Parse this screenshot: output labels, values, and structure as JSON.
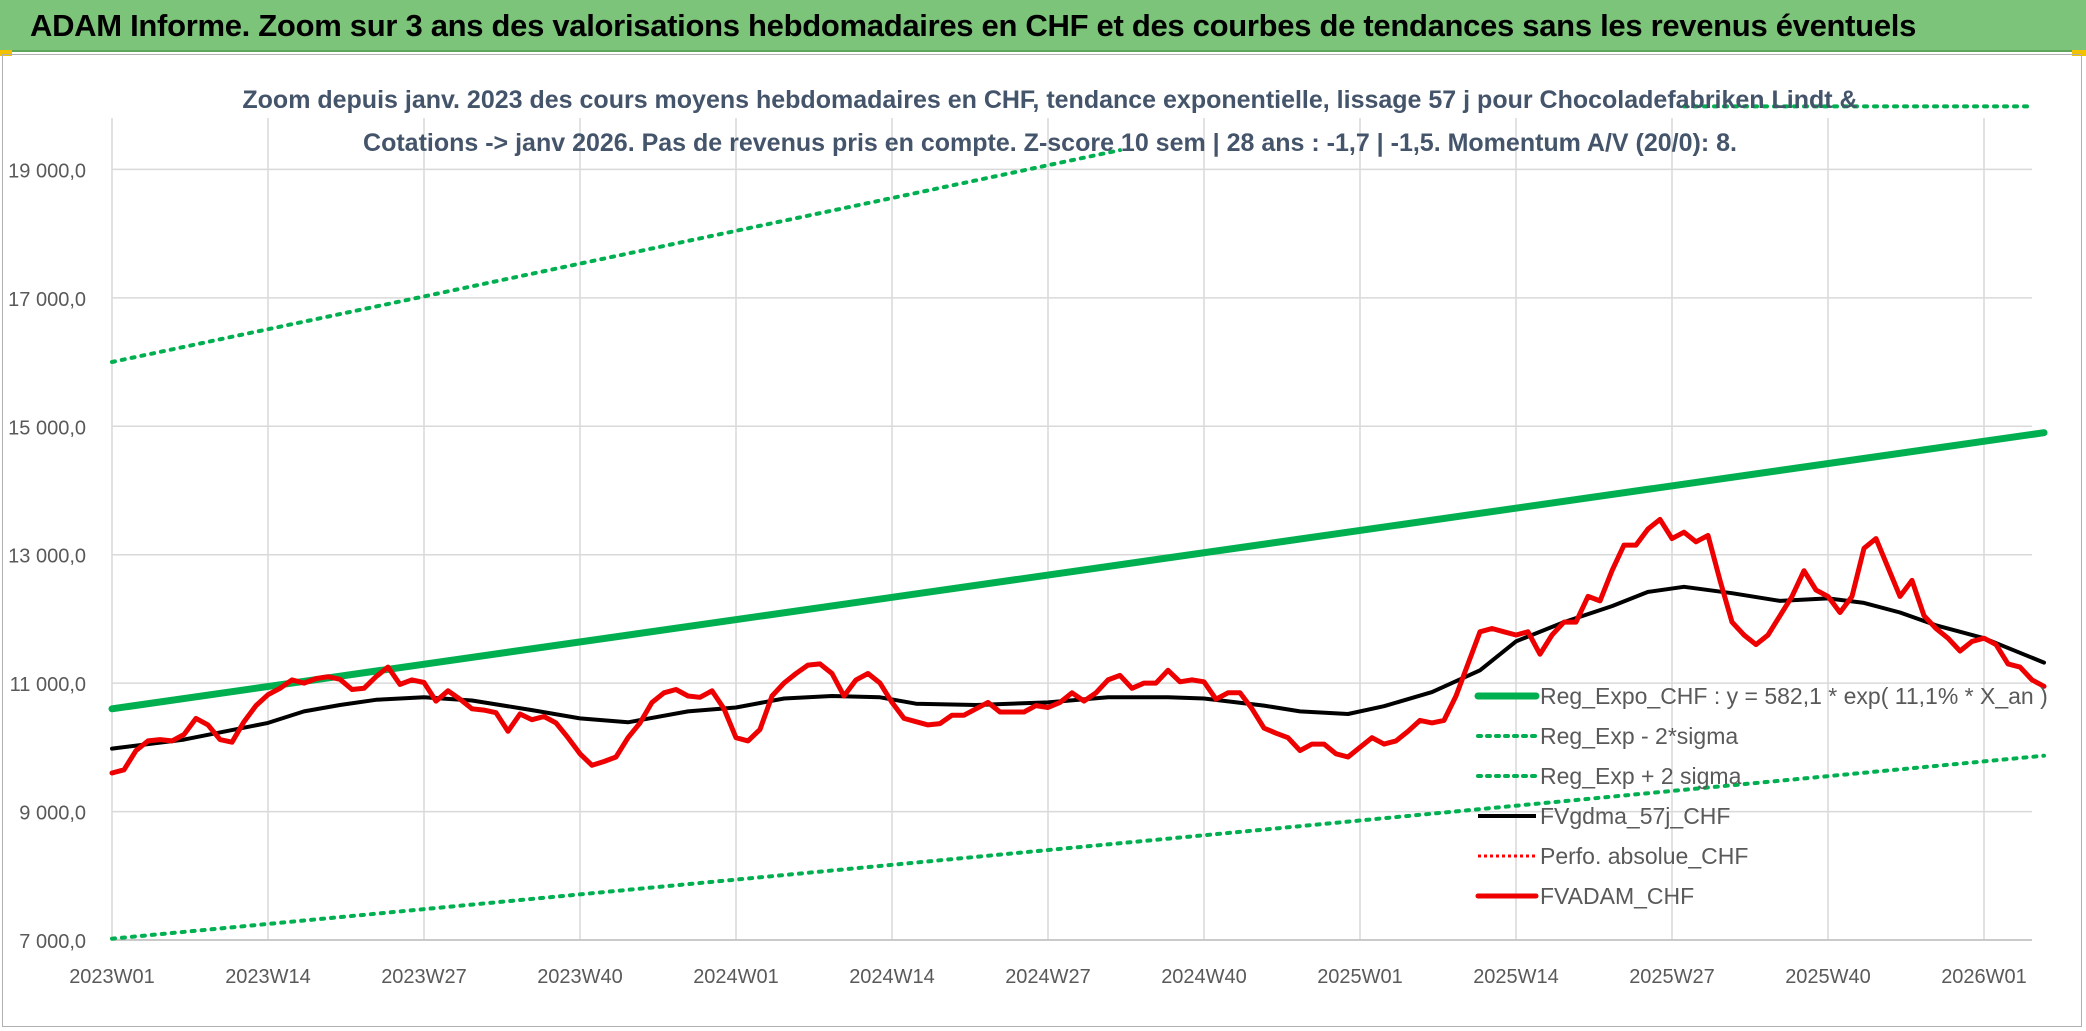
{
  "header": {
    "title": "ADAM Informe. Zoom sur 3 ans des valorisations hebdomadaires en CHF et des courbes de tendances sans les revenus éventuels"
  },
  "chart_data": {
    "type": "line",
    "title_line1": "Zoom depuis janv. 2023 des cours moyens hebdomadaires en CHF, tendance exponentielle, lissage 57 j pour Chocoladefabriken Lindt &",
    "title_line2": "Cotations -> janv 2026. Pas de revenus pris en compte. Z-score 10 sem | 28 ans : -1,7 | -1,5. Momentum A/V (20/0): 8.",
    "ylim": [
      7000,
      19800
    ],
    "yticks": [
      7000,
      9000,
      11000,
      13000,
      15000,
      17000,
      19000
    ],
    "ytick_labels": [
      "7 000,0",
      "9 000,0",
      "11 000,0",
      "13 000,0",
      "15 000,0",
      "17 000,0",
      "19 000,0"
    ],
    "x_tick_labels": [
      "2023W01",
      "2023W14",
      "2023W27",
      "2023W40",
      "2024W01",
      "2024W14",
      "2024W27",
      "2024W40",
      "2025W01",
      "2025W14",
      "2025W27",
      "2025W40",
      "2026W01"
    ],
    "x_tick_index": [
      0,
      13,
      26,
      39,
      52,
      65,
      78,
      91,
      104,
      117,
      130,
      143,
      156
    ],
    "x_count": 161,
    "grid": true,
    "legend_position": "right",
    "legend": [
      {
        "key": "reg",
        "label": "Reg_Expo_CHF : y = 582,1 * exp( 11,1% *  X_an )"
      },
      {
        "key": "lower",
        "label": "Reg_Exp - 2*sigma"
      },
      {
        "key": "upper",
        "label": "Reg_Exp + 2 sigma"
      },
      {
        "key": "sma",
        "label": "FVgdma_57j_CHF"
      },
      {
        "key": "perfo",
        "label": "Perfo. absolue_CHF"
      },
      {
        "key": "price",
        "label": "FVADAM_CHF"
      }
    ],
    "colors": {
      "reg": "#00b050",
      "lower": "#00b050",
      "upper": "#00b050",
      "sma": "#000000",
      "perfo": "#ff0000",
      "price": "#ee0000",
      "grid": "#d9d9d9",
      "axis_text": "#595959"
    },
    "series": [
      {
        "key": "reg",
        "name": "Reg_Expo_CHF : y = 582,1 * exp( 11,1% *  X_an )",
        "style": "solid-thick",
        "points": [
          [
            0,
            10600
          ],
          [
            161,
            14900
          ]
        ]
      },
      {
        "key": "lower",
        "name": "Reg_Exp - 2*sigma",
        "style": "dotted",
        "points": [
          [
            0,
            7020
          ],
          [
            161,
            9870
          ]
        ]
      },
      {
        "key": "upper",
        "name": "Reg_Exp + 2 sigma",
        "style": "dotted",
        "points": [
          [
            0,
            16000
          ],
          [
            84,
            19300
          ]
        ],
        "points_extra": [
          [
            131,
            19980
          ],
          [
            160,
            19980
          ]
        ]
      },
      {
        "key": "sma",
        "name": "FVgdma_57j_CHF",
        "style": "solid",
        "points": [
          [
            0,
            9980
          ],
          [
            6,
            10120
          ],
          [
            13,
            10380
          ],
          [
            16,
            10560
          ],
          [
            19,
            10660
          ],
          [
            22,
            10740
          ],
          [
            26,
            10780
          ],
          [
            30,
            10730
          ],
          [
            35,
            10580
          ],
          [
            39,
            10450
          ],
          [
            43,
            10390
          ],
          [
            48,
            10560
          ],
          [
            52,
            10620
          ],
          [
            56,
            10760
          ],
          [
            60,
            10800
          ],
          [
            64,
            10780
          ],
          [
            67,
            10680
          ],
          [
            72,
            10660
          ],
          [
            78,
            10700
          ],
          [
            83,
            10780
          ],
          [
            88,
            10780
          ],
          [
            91,
            10760
          ],
          [
            96,
            10650
          ],
          [
            99,
            10560
          ],
          [
            103,
            10520
          ],
          [
            106,
            10640
          ],
          [
            110,
            10860
          ],
          [
            114,
            11200
          ],
          [
            117,
            11650
          ],
          [
            121,
            11950
          ],
          [
            125,
            12200
          ],
          [
            128,
            12420
          ],
          [
            131,
            12500
          ],
          [
            135,
            12400
          ],
          [
            139,
            12280
          ],
          [
            143,
            12320
          ],
          [
            146,
            12250
          ],
          [
            149,
            12100
          ],
          [
            152,
            11900
          ],
          [
            156,
            11700
          ],
          [
            161,
            11320
          ]
        ]
      },
      {
        "key": "price",
        "name": "FVADAM_CHF",
        "style": "solid-thick",
        "points": [
          [
            0,
            9600
          ],
          [
            1,
            9650
          ],
          [
            2,
            9950
          ],
          [
            3,
            10100
          ],
          [
            4,
            10120
          ],
          [
            5,
            10100
          ],
          [
            6,
            10200
          ],
          [
            7,
            10450
          ],
          [
            8,
            10350
          ],
          [
            9,
            10120
          ],
          [
            10,
            10080
          ],
          [
            11,
            10400
          ],
          [
            12,
            10650
          ],
          [
            13,
            10820
          ],
          [
            14,
            10920
          ],
          [
            15,
            11050
          ],
          [
            16,
            11000
          ],
          [
            17,
            11070
          ],
          [
            18,
            11100
          ],
          [
            19,
            11060
          ],
          [
            20,
            10900
          ],
          [
            21,
            10920
          ],
          [
            22,
            11100
          ],
          [
            23,
            11250
          ],
          [
            24,
            10980
          ],
          [
            25,
            11050
          ],
          [
            26,
            11010
          ],
          [
            27,
            10720
          ],
          [
            28,
            10880
          ],
          [
            29,
            10750
          ],
          [
            30,
            10600
          ],
          [
            31,
            10580
          ],
          [
            32,
            10540
          ],
          [
            33,
            10250
          ],
          [
            34,
            10520
          ],
          [
            35,
            10430
          ],
          [
            36,
            10480
          ],
          [
            37,
            10380
          ],
          [
            38,
            10150
          ],
          [
            39,
            9900
          ],
          [
            40,
            9720
          ],
          [
            41,
            9780
          ],
          [
            42,
            9850
          ],
          [
            43,
            10150
          ],
          [
            44,
            10380
          ],
          [
            45,
            10700
          ],
          [
            46,
            10850
          ],
          [
            47,
            10900
          ],
          [
            48,
            10800
          ],
          [
            49,
            10780
          ],
          [
            50,
            10880
          ],
          [
            51,
            10600
          ],
          [
            52,
            10150
          ],
          [
            53,
            10100
          ],
          [
            54,
            10280
          ],
          [
            55,
            10800
          ],
          [
            56,
            11000
          ],
          [
            57,
            11150
          ],
          [
            58,
            11280
          ],
          [
            59,
            11300
          ],
          [
            60,
            11150
          ],
          [
            61,
            10800
          ],
          [
            62,
            11050
          ],
          [
            63,
            11150
          ],
          [
            64,
            11000
          ],
          [
            65,
            10700
          ],
          [
            66,
            10450
          ],
          [
            67,
            10400
          ],
          [
            68,
            10350
          ],
          [
            69,
            10370
          ],
          [
            70,
            10500
          ],
          [
            71,
            10500
          ],
          [
            72,
            10600
          ],
          [
            73,
            10700
          ],
          [
            74,
            10550
          ],
          [
            75,
            10550
          ],
          [
            76,
            10550
          ],
          [
            77,
            10650
          ],
          [
            78,
            10620
          ],
          [
            79,
            10700
          ],
          [
            80,
            10850
          ],
          [
            81,
            10720
          ],
          [
            82,
            10850
          ],
          [
            83,
            11050
          ],
          [
            84,
            11120
          ],
          [
            85,
            10920
          ],
          [
            86,
            11000
          ],
          [
            87,
            11000
          ],
          [
            88,
            11200
          ],
          [
            89,
            11020
          ],
          [
            90,
            11050
          ],
          [
            91,
            11020
          ],
          [
            92,
            10750
          ],
          [
            93,
            10850
          ],
          [
            94,
            10850
          ],
          [
            95,
            10600
          ],
          [
            96,
            10300
          ],
          [
            97,
            10220
          ],
          [
            98,
            10150
          ],
          [
            99,
            9950
          ],
          [
            100,
            10050
          ],
          [
            101,
            10050
          ],
          [
            102,
            9900
          ],
          [
            103,
            9850
          ],
          [
            104,
            10000
          ],
          [
            105,
            10150
          ],
          [
            106,
            10050
          ],
          [
            107,
            10100
          ],
          [
            108,
            10250
          ],
          [
            109,
            10420
          ],
          [
            110,
            10380
          ],
          [
            111,
            10420
          ],
          [
            112,
            10800
          ],
          [
            113,
            11300
          ],
          [
            114,
            11800
          ],
          [
            115,
            11850
          ],
          [
            116,
            11800
          ],
          [
            117,
            11750
          ],
          [
            118,
            11800
          ],
          [
            119,
            11450
          ],
          [
            120,
            11750
          ],
          [
            121,
            11950
          ],
          [
            122,
            11950
          ],
          [
            123,
            12350
          ],
          [
            124,
            12280
          ],
          [
            125,
            12750
          ],
          [
            126,
            13150
          ],
          [
            127,
            13150
          ],
          [
            128,
            13400
          ],
          [
            129,
            13550
          ],
          [
            130,
            13250
          ],
          [
            131,
            13350
          ],
          [
            132,
            13200
          ],
          [
            133,
            13300
          ],
          [
            134,
            12600
          ],
          [
            135,
            11950
          ],
          [
            136,
            11750
          ],
          [
            137,
            11600
          ],
          [
            138,
            11750
          ],
          [
            139,
            12050
          ],
          [
            140,
            12350
          ],
          [
            141,
            12750
          ],
          [
            142,
            12450
          ],
          [
            143,
            12350
          ],
          [
            144,
            12100
          ],
          [
            145,
            12350
          ],
          [
            146,
            13100
          ],
          [
            147,
            13250
          ],
          [
            148,
            12800
          ],
          [
            149,
            12350
          ],
          [
            150,
            12600
          ],
          [
            151,
            12050
          ],
          [
            152,
            11850
          ],
          [
            153,
            11700
          ],
          [
            154,
            11500
          ],
          [
            155,
            11650
          ],
          [
            156,
            11700
          ],
          [
            157,
            11600
          ],
          [
            158,
            11300
          ],
          [
            159,
            11250
          ],
          [
            160,
            11050
          ],
          [
            161,
            10950
          ]
        ]
      }
    ]
  }
}
